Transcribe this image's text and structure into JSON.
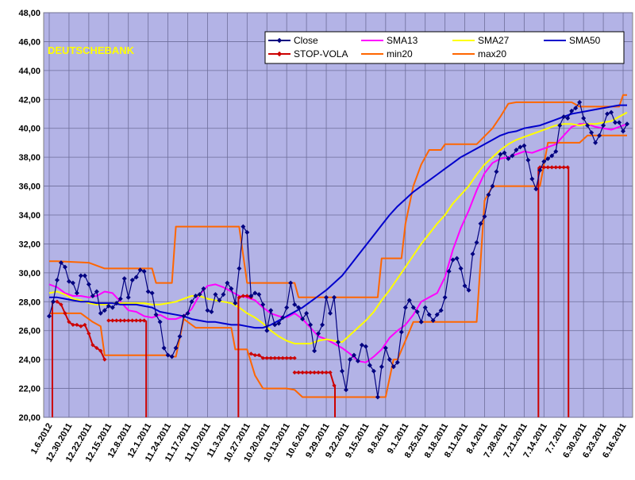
{
  "chart_data": {
    "type": "line",
    "watermark_text": "DEUTSCHEBANK",
    "ylim": [
      20,
      48
    ],
    "y_ticks": [
      "20,00",
      "22,00",
      "24,00",
      "26,00",
      "28,00",
      "30,00",
      "32,00",
      "34,00",
      "36,00",
      "38,00",
      "40,00",
      "42,00",
      "44,00",
      "46,00",
      "48,00"
    ],
    "x_ticks": [
      "1.6.2012",
      "12.30.2011",
      "12.22.2011",
      "12.15.2011",
      "12.8.2011",
      "12.1.2011",
      "11.24.2011",
      "11.17.2011",
      "11.10.2011",
      "11.3.2011",
      "10.27.2011",
      "10.20.2011",
      "10.13.2011",
      "10.6.2011",
      "9.29.2011",
      "9.22.2011",
      "9.15.2011",
      "9.8.2011",
      "9.1.2011",
      "8.25.2011",
      "8.18.2011",
      "8.11.2011",
      "8.4.2011",
      "7.28.2011",
      "7.21.2011",
      "7.14.2011",
      "7.7.2011",
      "6.30.2011",
      "6.23.2011",
      "6.16.2011"
    ],
    "x_order": "newest-to-oldest",
    "grid": true,
    "legend_placement": "top-right",
    "series": [
      {
        "name": "Close",
        "color": "#000080",
        "marker": "diamond",
        "x": [
          0,
          1,
          2,
          3,
          4,
          5,
          6,
          7,
          8,
          9,
          10,
          11,
          12,
          13,
          14,
          15,
          16,
          17,
          18,
          19,
          20,
          21,
          22,
          23,
          24,
          25,
          26,
          27,
          28,
          29,
          30,
          31,
          32,
          33,
          34,
          35,
          36,
          37,
          38,
          39,
          40,
          41,
          42,
          43,
          44,
          45,
          46,
          47,
          48,
          49,
          50,
          51,
          52,
          53,
          54,
          55,
          56,
          57,
          58,
          59,
          60,
          61,
          62,
          63,
          64,
          65,
          66,
          67,
          68,
          69,
          70,
          71,
          72,
          73,
          74,
          75,
          76,
          77,
          78,
          79,
          80,
          81,
          82,
          83,
          84,
          85,
          86,
          87,
          88,
          89,
          90,
          91,
          92,
          93,
          94,
          95,
          96,
          97,
          98,
          99,
          100,
          101,
          102,
          103,
          104,
          105,
          106,
          107,
          108,
          109,
          110,
          111,
          112,
          113,
          114,
          115,
          116,
          117,
          118,
          119,
          120,
          121,
          122,
          123,
          124,
          125,
          126,
          127,
          128,
          129,
          130,
          131,
          132,
          133,
          134,
          135,
          136,
          137,
          138,
          139,
          140,
          141,
          142,
          143,
          144,
          145,
          146
        ],
        "y": [
          27.0,
          28.0,
          29.5,
          30.7,
          30.4,
          29.4,
          29.3,
          28.6,
          29.8,
          29.8,
          29.2,
          28.4,
          28.7,
          27.2,
          27.4,
          27.7,
          27.6,
          27.9,
          28.2,
          29.6,
          28.3,
          29.5,
          29.7,
          30.2,
          30.1,
          28.7,
          28.6,
          27.1,
          26.6,
          24.8,
          24.3,
          24.2,
          24.8,
          25.6,
          27.0,
          27.2,
          28.0,
          28.4,
          28.5,
          28.9,
          27.4,
          27.3,
          28.5,
          28.1,
          28.5,
          29.3,
          28.9,
          27.9,
          30.3,
          33.2,
          32.8,
          28.4,
          28.6,
          28.5,
          27.8,
          26.0,
          27.4,
          26.4,
          26.5,
          26.9,
          27.6,
          29.3,
          27.8,
          27.6,
          26.8,
          27.2,
          26.4,
          24.6,
          25.8,
          26.4,
          28.3,
          27.2,
          28.3,
          25.2,
          23.2,
          21.9,
          24.0,
          24.3,
          23.9,
          25.0,
          24.9,
          23.6,
          23.2,
          21.4,
          23.5,
          24.8,
          24.0,
          23.5,
          23.8,
          25.9,
          27.6,
          28.1,
          27.6,
          27.3,
          26.6,
          27.6,
          27.1,
          26.7,
          27.1,
          27.4,
          28.3,
          30.1,
          30.9,
          31.0,
          30.3,
          29.1,
          28.8,
          31.3,
          32.1,
          33.4,
          33.9,
          35.4,
          36.0,
          37.0,
          38.2,
          38.3,
          37.9,
          38.1,
          38.5,
          38.7,
          38.8,
          37.8,
          36.5,
          35.8,
          37.1,
          37.7,
          37.9,
          38.1,
          38.4,
          40.2,
          40.8,
          40.7,
          41.2,
          41.4,
          41.8,
          40.7,
          40.2,
          39.7,
          39.0,
          39.5,
          40.2,
          41.0,
          41.1,
          40.4,
          40.4,
          39.8,
          40.3
        ]
      },
      {
        "name": "SMA13",
        "color": "#ff00ff",
        "x": [
          0,
          2,
          4,
          6,
          8,
          10,
          12,
          14,
          16,
          18,
          20,
          22,
          24,
          26,
          28,
          30,
          32,
          34,
          36,
          38,
          40,
          42,
          44,
          46,
          48,
          50,
          52,
          54,
          56,
          58,
          60,
          62,
          64,
          66,
          68,
          70,
          72,
          74,
          76,
          78,
          80,
          82,
          84,
          86,
          88,
          90,
          92,
          94,
          96,
          98,
          100,
          102,
          104,
          106,
          108,
          110,
          112,
          114,
          116,
          118,
          120,
          122,
          124,
          126,
          128,
          130,
          132,
          134,
          136,
          138,
          140,
          142,
          144,
          146
        ],
        "y": [
          29.2,
          29.0,
          28.6,
          28.4,
          28.4,
          28.3,
          28.4,
          28.7,
          28.6,
          28.0,
          27.4,
          27.3,
          27.0,
          26.9,
          27.1,
          26.8,
          26.8,
          27.0,
          27.5,
          28.5,
          29.1,
          29.2,
          29.0,
          28.7,
          28.4,
          28.3,
          28.1,
          27.6,
          27.2,
          27.0,
          26.9,
          27.2,
          26.8,
          26.2,
          25.6,
          25.4,
          25.1,
          24.8,
          24.4,
          23.9,
          23.8,
          24.2,
          24.7,
          25.5,
          26.0,
          26.4,
          27.1,
          28.0,
          28.3,
          28.6,
          29.7,
          31.6,
          33.1,
          34.3,
          35.7,
          36.9,
          37.6,
          37.9,
          38.0,
          38.2,
          38.4,
          38.3,
          38.5,
          38.7,
          38.9,
          39.5,
          40.1,
          40.3,
          40.3,
          40.1,
          40.0,
          39.9,
          40.1,
          40.3
        ]
      },
      {
        "name": "SMA27",
        "color": "#ffff00",
        "x": [
          0,
          2,
          4,
          6,
          8,
          10,
          12,
          14,
          16,
          18,
          20,
          22,
          24,
          26,
          28,
          30,
          32,
          34,
          36,
          38,
          40,
          42,
          44,
          46,
          48,
          50,
          52,
          54,
          56,
          58,
          60,
          62,
          64,
          66,
          68,
          70,
          72,
          74,
          76,
          78,
          80,
          82,
          84,
          86,
          88,
          90,
          92,
          94,
          96,
          98,
          100,
          102,
          104,
          106,
          108,
          110,
          112,
          114,
          116,
          118,
          120,
          122,
          124,
          126,
          128,
          130,
          132,
          134,
          136,
          138,
          140,
          142,
          144,
          146
        ],
        "y": [
          28.6,
          28.7,
          28.5,
          28.2,
          28.1,
          27.9,
          27.8,
          27.8,
          27.9,
          27.9,
          27.9,
          27.9,
          27.9,
          27.8,
          27.8,
          27.9,
          28.0,
          28.2,
          28.4,
          28.4,
          28.2,
          28.1,
          28.0,
          27.9,
          27.6,
          27.2,
          26.9,
          26.5,
          26.0,
          25.6,
          25.3,
          25.1,
          25.1,
          25.1,
          25.3,
          25.4,
          25.3,
          25.2,
          25.7,
          26.2,
          26.7,
          27.3,
          28.1,
          28.8,
          29.6,
          30.4,
          31.2,
          32.0,
          32.7,
          33.4,
          34.0,
          34.8,
          35.4,
          36.0,
          36.8,
          37.5,
          38.0,
          38.5,
          38.9,
          39.2,
          39.4,
          39.6,
          39.8,
          40.0,
          40.2,
          40.3,
          40.3,
          40.2,
          40.3,
          40.3,
          40.4,
          40.5,
          40.8,
          41.1
        ]
      },
      {
        "name": "SMA50",
        "color": "#0000cc",
        "x": [
          0,
          2,
          4,
          6,
          8,
          10,
          12,
          14,
          16,
          18,
          20,
          22,
          24,
          26,
          28,
          30,
          32,
          34,
          36,
          38,
          40,
          42,
          44,
          46,
          48,
          50,
          52,
          54,
          56,
          58,
          60,
          62,
          64,
          66,
          68,
          70,
          72,
          74,
          76,
          78,
          80,
          82,
          84,
          86,
          88,
          90,
          92,
          94,
          96,
          98,
          100,
          102,
          104,
          106,
          108,
          110,
          112,
          114,
          116,
          118,
          120,
          122,
          124,
          126,
          128,
          130,
          132,
          134,
          136,
          138,
          140,
          142,
          144,
          146
        ],
        "y": [
          28.3,
          28.3,
          28.2,
          28.1,
          28.0,
          28.0,
          27.9,
          27.9,
          27.9,
          27.8,
          27.8,
          27.8,
          27.7,
          27.6,
          27.3,
          27.2,
          27.1,
          27.0,
          26.8,
          26.7,
          26.6,
          26.6,
          26.5,
          26.4,
          26.4,
          26.3,
          26.2,
          26.2,
          26.4,
          26.7,
          27.0,
          27.3,
          27.6,
          28.0,
          28.4,
          28.8,
          29.3,
          29.8,
          30.5,
          31.2,
          31.9,
          32.6,
          33.3,
          34.0,
          34.6,
          35.1,
          35.6,
          36.0,
          36.4,
          36.8,
          37.2,
          37.6,
          38.0,
          38.3,
          38.6,
          38.9,
          39.2,
          39.5,
          39.7,
          39.8,
          40.0,
          40.1,
          40.2,
          40.4,
          40.6,
          40.8,
          41.0,
          41.1,
          41.2,
          41.3,
          41.4,
          41.5,
          41.6,
          41.6
        ]
      },
      {
        "name": "STOP-VOLA",
        "color": "#cc0000",
        "marker": "diamond",
        "segments": [
          {
            "x": [
              1,
              2,
              3,
              4,
              5,
              6,
              7,
              8,
              9,
              10,
              11,
              12,
              13,
              14
            ],
            "y": [
              28.0,
              28.0,
              27.8,
              27.2,
              26.6,
              26.4,
              26.4,
              26.3,
              26.4,
              25.8,
              25.0,
              24.8,
              24.6,
              24.0
            ]
          },
          {
            "x": [
              15,
              16,
              17,
              18,
              19,
              20,
              21,
              22,
              23,
              24
            ],
            "y": [
              26.7,
              26.7,
              26.7,
              26.7,
              26.7,
              26.7,
              26.7,
              26.7,
              26.7,
              26.7
            ]
          },
          {
            "x": [
              48,
              49,
              50,
              51
            ],
            "y": [
              28.3,
              28.4,
              28.4,
              28.3
            ]
          },
          {
            "x": [
              51,
              52,
              53,
              54,
              55,
              56,
              57,
              58,
              59,
              60,
              61,
              62
            ],
            "y": [
              24.4,
              24.3,
              24.3,
              24.1,
              24.1,
              24.1,
              24.1,
              24.1,
              24.1,
              24.1,
              24.1,
              24.1
            ]
          },
          {
            "x": [
              62,
              63,
              64,
              65,
              66,
              67,
              68,
              69,
              70,
              71,
              72
            ],
            "y": [
              23.1,
              23.1,
              23.1,
              23.1,
              23.1,
              23.1,
              23.1,
              23.1,
              23.1,
              23.1,
              22.2
            ]
          },
          {
            "x": [
              124,
              125,
              126,
              127,
              128,
              129,
              130,
              131
            ],
            "y": [
              37.3,
              37.3,
              37.3,
              37.3,
              37.3,
              37.3,
              37.3,
              37.3
            ]
          }
        ],
        "drops": [
          {
            "x": 0.8,
            "from": 28.0,
            "to": 20.0
          },
          {
            "x": 24.5,
            "from": 26.7,
            "to": 20.0
          },
          {
            "x": 47.8,
            "from": 28.3,
            "to": 20.0
          },
          {
            "x": 72.2,
            "from": 22.2,
            "to": 20.0
          },
          {
            "x": 123.6,
            "from": 37.3,
            "to": 20.0
          },
          {
            "x": 131.2,
            "from": 37.3,
            "to": 20.0
          }
        ]
      },
      {
        "name": "min20",
        "color": "#ff6600",
        "x": [
          0,
          5,
          8,
          11,
          13,
          14,
          28,
          30,
          31,
          32,
          34,
          37,
          46,
          47,
          48,
          50,
          52,
          54,
          56,
          58,
          60,
          62,
          64,
          66,
          70,
          72,
          76,
          78,
          84,
          85,
          87,
          88,
          92,
          96,
          100,
          101,
          104,
          108,
          110,
          112,
          114,
          116,
          118,
          120,
          122,
          124,
          126,
          130,
          134,
          136,
          138,
          140,
          142,
          146
        ],
        "y": [
          27.2,
          27.2,
          27.2,
          26.6,
          26.3,
          24.3,
          24.3,
          24.3,
          24.2,
          24.2,
          26.8,
          26.2,
          26.2,
          24.7,
          24.7,
          24.7,
          22.9,
          22.0,
          22.0,
          22.0,
          22.0,
          21.9,
          21.4,
          21.4,
          21.4,
          21.4,
          21.4,
          21.4,
          21.4,
          21.4,
          24.0,
          24.0,
          26.6,
          26.6,
          26.6,
          26.6,
          26.6,
          26.6,
          35.0,
          36.0,
          36.0,
          36.0,
          36.0,
          36.0,
          36.0,
          36.0,
          39.0,
          39.0,
          39.0,
          39.5,
          39.5,
          39.5,
          39.5,
          39.5
        ]
      },
      {
        "name": "max20",
        "color": "#ff6600",
        "x": [
          0,
          2,
          10,
          14,
          16,
          26,
          27,
          28,
          31,
          32,
          33,
          48,
          50,
          51,
          62,
          63,
          73,
          74,
          83,
          84,
          85,
          89,
          90,
          92,
          94,
          96,
          99,
          100,
          104,
          106,
          108,
          112,
          114,
          116,
          118,
          120,
          122,
          124,
          132,
          134,
          136,
          142,
          144,
          145,
          146
        ],
        "y": [
          30.8,
          30.8,
          30.7,
          30.3,
          30.3,
          30.3,
          29.3,
          29.3,
          29.3,
          33.2,
          33.2,
          33.2,
          29.3,
          29.3,
          29.3,
          28.3,
          28.3,
          28.3,
          28.3,
          31.0,
          31.0,
          31.0,
          33.4,
          36.0,
          37.5,
          38.5,
          38.5,
          38.9,
          38.9,
          38.9,
          38.9,
          40.0,
          40.8,
          41.7,
          41.8,
          41.8,
          41.8,
          41.8,
          41.8,
          41.5,
          41.5,
          41.5,
          41.5,
          42.3,
          42.3
        ]
      }
    ]
  }
}
